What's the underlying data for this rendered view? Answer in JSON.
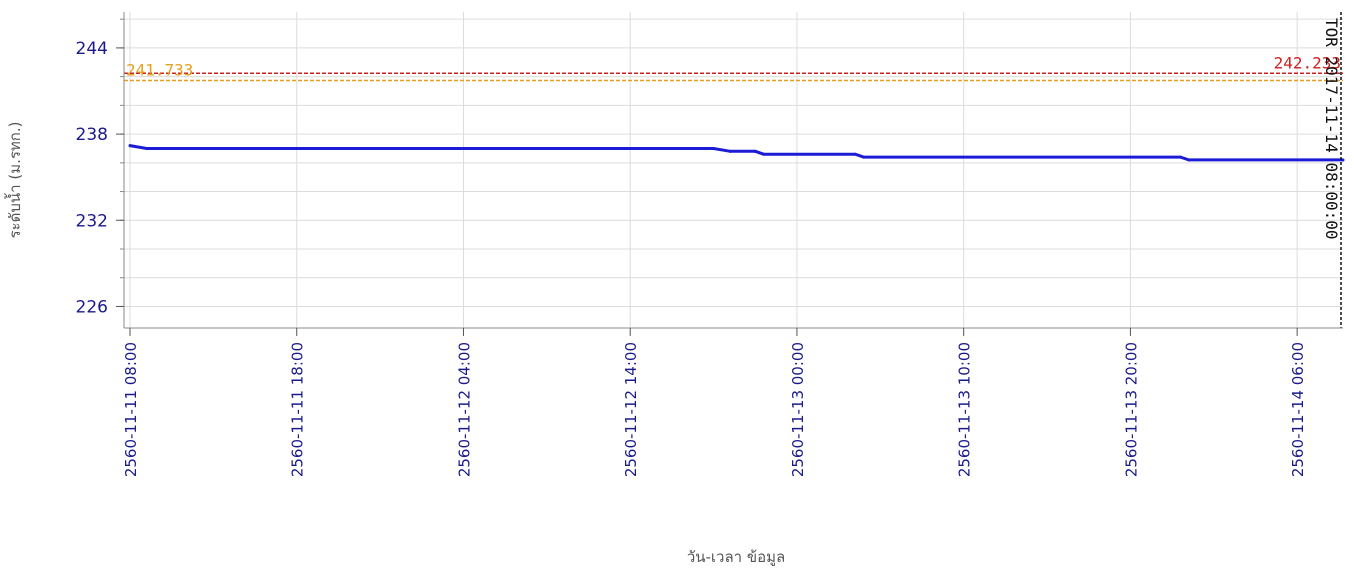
{
  "chart_data": {
    "type": "line",
    "title": "",
    "xlabel": "วัน-เวลา ข้อมูล",
    "ylabel": "ระดับน้ำ (ม.รทก.)",
    "ylim": [
      224.5,
      246.5
    ],
    "y_ticks": [
      226,
      232,
      238,
      244
    ],
    "y_minor_step": 2,
    "x_range": [
      "2560-11-11 08:00",
      "2560-11-14 08:45"
    ],
    "x_ticks": [
      {
        "t": "2560-11-11 08:00",
        "label": "2560-11-11 08:00"
      },
      {
        "t": "2560-11-11 18:00",
        "label": "2560-11-11 18:00"
      },
      {
        "t": "2560-11-12 04:00",
        "label": "2560-11-12 04:00"
      },
      {
        "t": "2560-11-12 14:00",
        "label": "2560-11-12 14:00"
      },
      {
        "t": "2560-11-13 00:00",
        "label": "2560-11-13 00:00"
      },
      {
        "t": "2560-11-13 10:00",
        "label": "2560-11-13 10:00"
      },
      {
        "t": "2560-11-13 20:00",
        "label": "2560-11-13 20:00"
      },
      {
        "t": "2560-11-14 06:00",
        "label": "2560-11-14 06:00"
      }
    ],
    "grid": true,
    "series": [
      {
        "color": "#1c1cd6",
        "points": [
          [
            "2560-11-11 08:00",
            237.2
          ],
          [
            "2560-11-11 09:00",
            237.0
          ],
          [
            "2560-11-12 19:00",
            237.0
          ],
          [
            "2560-11-12 20:00",
            236.8
          ],
          [
            "2560-11-12 21:30",
            236.8
          ],
          [
            "2560-11-12 22:00",
            236.6
          ],
          [
            "2560-11-13 03:30",
            236.6
          ],
          [
            "2560-11-13 04:00",
            236.4
          ],
          [
            "2560-11-13 23:00",
            236.4
          ],
          [
            "2560-11-13 23:30",
            236.2
          ],
          [
            "2560-11-14 08:45",
            236.2
          ]
        ]
      }
    ],
    "reference_lines": [
      {
        "value": 242.233,
        "label": "242.233",
        "color": "#cc2222",
        "label_side": "right"
      },
      {
        "value": 241.733,
        "label": "241.733",
        "color": "#e6a020",
        "label_side": "left"
      }
    ],
    "vertical_marker": {
      "t": "2560-11-14 08:45",
      "label": "TOR 2017-11-14 08:00:00",
      "color": "#111111"
    }
  }
}
